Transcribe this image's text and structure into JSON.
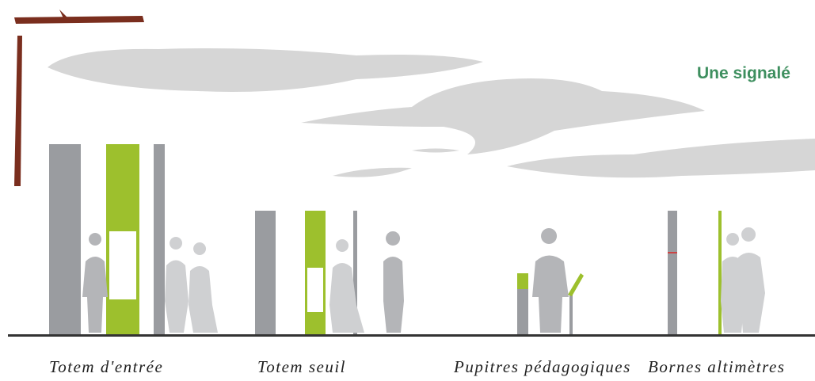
{
  "header": {
    "title": "Une signalé"
  },
  "labels": [
    "Totem d'entrée",
    "Totem seuil",
    "Pupitres pédagogiques",
    "Bornes altimètres"
  ]
}
